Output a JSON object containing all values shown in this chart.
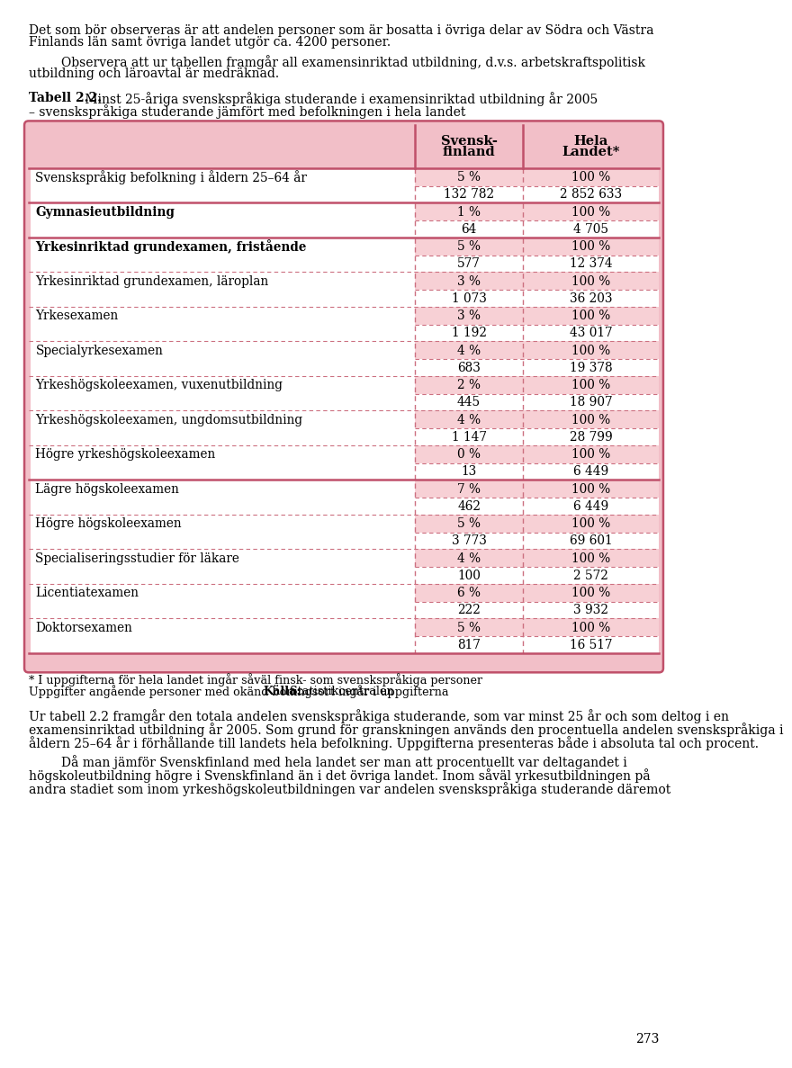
{
  "top_line1": "Det som bör observeras är att andelen personer som är bosatta i övriga delar av Södra och Västra",
  "top_line2": "Finlands län samt övriga landet utgör ca. 4200 personer.",
  "indent_line1": "Observera att ur tabellen framgår all examensinriktad utbildning, d.v.s. arbetskraftspolitisk",
  "indent_line2": "utbildning och läroavtal är medräknad.",
  "title_bold": "Tabell 2.2.",
  "title_rest": " Minst 25-åriga svenskspråkiga studerande i examensinriktad utbildning år 2005",
  "subtitle": "– svenskspråkiga studerande jämfört med befolkningen i hela landet",
  "col1_header_line1": "Svensk-",
  "col1_header_line2": "finland",
  "col2_header_line1": "Hela",
  "col2_header_line2": "Landet*",
  "rows": [
    {
      "label": "Svenskspråkig befolkning i åldern 25–64 år",
      "bold": false,
      "sv_pct": "5 %",
      "hela_pct": "100 %",
      "sv_abs": "132 782",
      "hela_abs": "2 852 633",
      "solid_below": true
    },
    {
      "label": "Gymnasieutbildning",
      "bold": true,
      "sv_pct": "1 %",
      "hela_pct": "100 %",
      "sv_abs": "64",
      "hela_abs": "4 705",
      "solid_below": true
    },
    {
      "label": "Yrkesinriktad grundexamen, fristående",
      "bold": true,
      "sv_pct": "5 %",
      "hela_pct": "100 %",
      "sv_abs": "577",
      "hela_abs": "12 374",
      "solid_below": false
    },
    {
      "label": "Yrkesinriktad grundexamen, läroplan",
      "bold": false,
      "sv_pct": "3 %",
      "hela_pct": "100 %",
      "sv_abs": "1 073",
      "hela_abs": "36 203",
      "solid_below": false
    },
    {
      "label": "Yrkesexamen",
      "bold": false,
      "sv_pct": "3 %",
      "hela_pct": "100 %",
      "sv_abs": "1 192",
      "hela_abs": "43 017",
      "solid_below": false
    },
    {
      "label": "Specialyrkesexamen",
      "bold": false,
      "sv_pct": "4 %",
      "hela_pct": "100 %",
      "sv_abs": "683",
      "hela_abs": "19 378",
      "solid_below": false
    },
    {
      "label": "Yrkeshögskoleexamen, vuxenutbildning",
      "bold": false,
      "sv_pct": "2 %",
      "hela_pct": "100 %",
      "sv_abs": "445",
      "hela_abs": "18 907",
      "solid_below": false
    },
    {
      "label": "Yrkeshögskoleexamen, ungdomsutbildning",
      "bold": false,
      "sv_pct": "4 %",
      "hela_pct": "100 %",
      "sv_abs": "1 147",
      "hela_abs": "28 799",
      "solid_below": false
    },
    {
      "label": "Högre yrkeshögskoleexamen",
      "bold": false,
      "sv_pct": "0 %",
      "hela_pct": "100 %",
      "sv_abs": "13",
      "hela_abs": "6 449",
      "solid_below": true
    },
    {
      "label": "Lägre högskoleexamen",
      "bold": false,
      "sv_pct": "7 %",
      "hela_pct": "100 %",
      "sv_abs": "462",
      "hela_abs": "6 449",
      "solid_below": false
    },
    {
      "label": "Högre högskoleexamen",
      "bold": false,
      "sv_pct": "5 %",
      "hela_pct": "100 %",
      "sv_abs": "3 773",
      "hela_abs": "69 601",
      "solid_below": false
    },
    {
      "label": "Specialiseringsstudier för läkare",
      "bold": false,
      "sv_pct": "4 %",
      "hela_pct": "100 %",
      "sv_abs": "100",
      "hela_abs": "2 572",
      "solid_below": false
    },
    {
      "label": "Licentiatexamen",
      "bold": false,
      "sv_pct": "6 %",
      "hela_pct": "100 %",
      "sv_abs": "222",
      "hela_abs": "3 932",
      "solid_below": false
    },
    {
      "label": "Doktorsexamen",
      "bold": false,
      "sv_pct": "5 %",
      "hela_pct": "100 %",
      "sv_abs": "817",
      "hela_abs": "16 517",
      "solid_below": false
    }
  ],
  "footnote1": "* I uppgifterna för hela landet ingår såväl finsk- som svenskspråkiga personer",
  "footnote2_plain": "Uppgifter angående personer med okänd boningsort ingår i uppgifterna ",
  "footnote2_bold": "Källa:",
  "footnote2_rest": " Statistikcentralen",
  "body_text1_lines": [
    "Ur tabell 2.2 framgår den totala andelen svenskspråkiga studerande, som var minst 25 år och som deltog i en",
    "examensinriktad utbildning år 2005. Som grund för granskningen används den procentuella andelen svenskspråkiga i",
    "åldern 25–64 år i förhållande till landets hela befolkning. Uppgifterna presenteras både i absoluta tal och procent."
  ],
  "body_text2_lines": [
    "Då man jämför Svenskfinland med hela landet ser man att procentuellt var deltagandet i",
    "högskoleutbildning högre i Svenskfinland än i det övriga landet. Inom såväl yrkesutbildningen på",
    "andra stadiet som inom yrkeshögskoleutbildningen var andelen svenskspråkiga studerande däremot"
  ],
  "page_number": "273",
  "bg_color": "#ffffff",
  "table_outer_bg": "#f2bfc8",
  "cell_pct_bg": "#f7d0d5",
  "cell_abs_bg": "#ffffff",
  "label_bg": "#ffffff",
  "border_solid": "#c0506a",
  "border_dashed": "#cc7080",
  "text_color": "#000000"
}
